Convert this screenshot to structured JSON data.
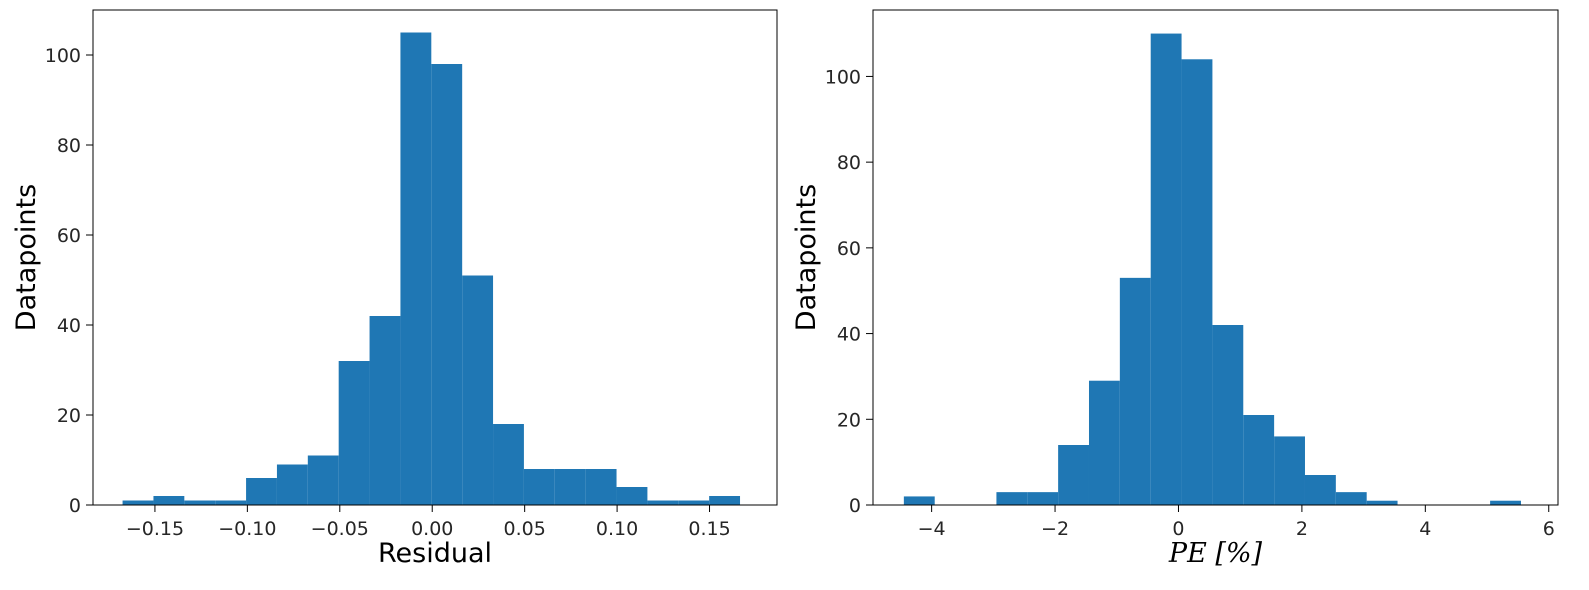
{
  "chart_data": [
    {
      "type": "bar",
      "subtype": "histogram",
      "xlabel": "Residual",
      "ylabel": "Datapoints",
      "xlim": [
        -0.1835,
        0.1865
      ],
      "ylim": [
        0,
        110
      ],
      "xticks": [
        -0.15,
        -0.1,
        -0.05,
        0.0,
        0.05,
        0.1,
        0.15
      ],
      "xtick_labels": [
        "−0.15",
        "−0.10",
        "−0.05",
        "0.00",
        "0.05",
        "0.10",
        "0.15"
      ],
      "yticks": [
        0,
        20,
        40,
        60,
        80,
        100
      ],
      "ytick_labels": [
        "0",
        "20",
        "40",
        "60",
        "80",
        "100"
      ],
      "grid": false,
      "color": "#1f77b4",
      "bin_edges": [
        -0.1675,
        -0.1508,
        -0.1341,
        -0.1174,
        -0.1007,
        -0.084,
        -0.0673,
        -0.0506,
        -0.0339,
        -0.0172,
        -0.0005,
        0.0162,
        0.0329,
        0.0496,
        0.0663,
        0.083,
        0.0997,
        0.1164,
        0.1331,
        0.1498,
        0.1665
      ],
      "values": [
        1,
        2,
        1,
        1,
        6,
        9,
        11,
        32,
        42,
        105,
        98,
        51,
        18,
        8,
        8,
        8,
        4,
        1,
        1,
        2
      ]
    },
    {
      "type": "bar",
      "subtype": "histogram",
      "xlabel": "PE [%]",
      "ylabel": "Datapoints",
      "xlim": [
        -4.95,
        6.15
      ],
      "ylim": [
        0,
        115.5
      ],
      "xticks": [
        -4,
        -2,
        0,
        2,
        4,
        6
      ],
      "xtick_labels": [
        "−4",
        "−2",
        "0",
        "2",
        "4",
        "6"
      ],
      "yticks": [
        0,
        20,
        40,
        60,
        80,
        100
      ],
      "ytick_labels": [
        "0",
        "20",
        "40",
        "60",
        "80",
        "100"
      ],
      "grid": false,
      "color": "#1f77b4",
      "bin_edges": [
        -4.45,
        -3.95,
        -3.45,
        -2.95,
        -2.45,
        -1.95,
        -1.45,
        -0.95,
        -0.45,
        0.05,
        0.55,
        1.05,
        1.55,
        2.05,
        2.55,
        3.05,
        3.55,
        4.05,
        4.55,
        5.05,
        5.55
      ],
      "values": [
        2,
        0,
        0,
        3,
        3,
        14,
        29,
        53,
        110,
        104,
        42,
        21,
        16,
        7,
        3,
        1,
        0,
        0,
        0,
        1
      ]
    }
  ]
}
